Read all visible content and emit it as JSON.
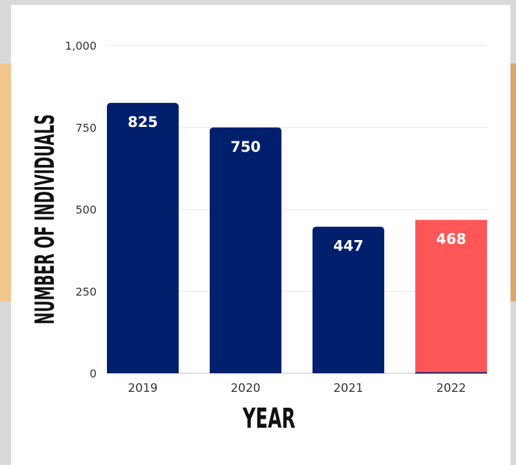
{
  "chart_data": {
    "type": "bar",
    "categories": [
      "2019",
      "2020",
      "2021",
      "2022"
    ],
    "values": [
      825,
      750,
      447,
      468
    ],
    "data_labels": [
      "825",
      "750",
      "447",
      "468"
    ],
    "xlabel": "YEAR",
    "ylabel": "NUMBER OF INDIVIDUALS",
    "ylim": [
      0,
      1000
    ],
    "yticks": [
      0,
      250,
      500,
      750,
      1000
    ],
    "ytick_labels": [
      "0",
      "250",
      "500",
      "750",
      "1,000"
    ],
    "grid": true,
    "colors": {
      "default_bar": "#00206e",
      "highlight_bar": "#ff5757",
      "highlight_index": 3
    }
  }
}
